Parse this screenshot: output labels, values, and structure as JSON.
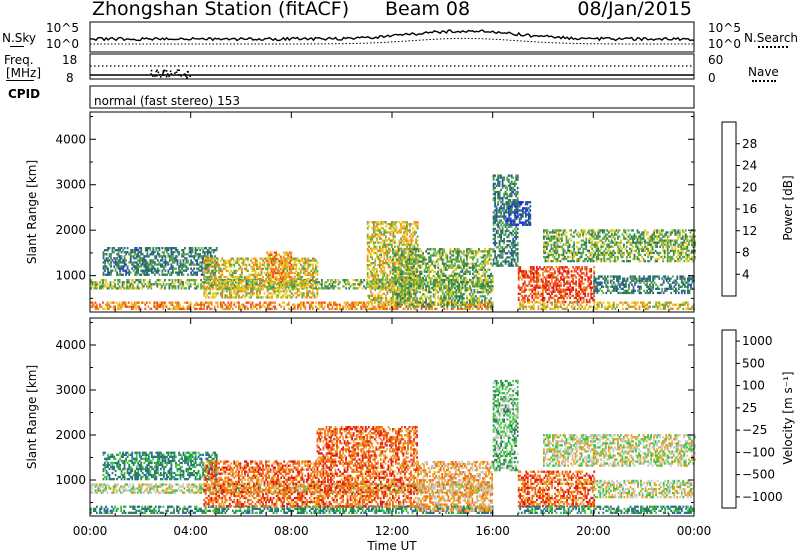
{
  "header": {
    "title": "Zhongshan Station (fitACF)",
    "beam": "Beam 08",
    "date": "08/Jan/2015"
  },
  "top_panels": {
    "nsky_label": "N.Sky",
    "nsearch_label": "N.Search",
    "nsky_ticks": [
      "10^5",
      "10^0"
    ],
    "freq_label": "Freq.",
    "freq_unit": "[MHz]",
    "freq_ticks": [
      "18",
      "8"
    ],
    "nave_label": "Nave",
    "nave_ticks": [
      "60",
      "0"
    ],
    "cpid_label": "CPID",
    "cpid_value": "normal (fast stereo) 153"
  },
  "chart_data": [
    {
      "type": "heatmap",
      "name": "power",
      "ylabel": "Slant Range [km]",
      "xlabel": "Time UT",
      "x_ticks": [
        "00:00",
        "04:00",
        "08:00",
        "12:00",
        "16:00",
        "20:00",
        "00:00"
      ],
      "y_ticks": [
        1000,
        2000,
        3000,
        4000
      ],
      "ylim": [
        200,
        4600
      ],
      "xlim": [
        0,
        24
      ],
      "colorbar": {
        "label": "Power [dB]",
        "ticks": [
          4,
          8,
          12,
          16,
          20,
          24,
          28
        ],
        "colors": [
          "#1e1eff",
          "#2a4fa8",
          "#2f7d57",
          "#5aa84a",
          "#e6c81e",
          "#f08a1e",
          "#f04a1a",
          "#e61414"
        ]
      },
      "echo_regions": [
        {
          "t0": 0.0,
          "t1": 16.0,
          "r0": 250,
          "r1": 420,
          "level": 5
        },
        {
          "t0": 0.0,
          "t1": 16.0,
          "r0": 700,
          "r1": 900,
          "level": 3
        },
        {
          "t0": 0.5,
          "t1": 5.0,
          "r0": 1000,
          "r1": 1600,
          "level": 2
        },
        {
          "t0": 4.5,
          "t1": 9.0,
          "r0": 500,
          "r1": 1400,
          "level": 4
        },
        {
          "t0": 7.0,
          "t1": 8.0,
          "r0": 900,
          "r1": 1500,
          "level": 5
        },
        {
          "t0": 11.0,
          "t1": 13.0,
          "r0": 400,
          "r1": 2200,
          "level": 4
        },
        {
          "t0": 12.0,
          "t1": 16.0,
          "r0": 300,
          "r1": 1600,
          "level": 3
        },
        {
          "t0": 16.0,
          "t1": 17.0,
          "r0": 1200,
          "r1": 3200,
          "level": 2
        },
        {
          "t0": 16.5,
          "t1": 17.5,
          "r0": 2100,
          "r1": 2600,
          "level": 1
        },
        {
          "t0": 17.0,
          "t1": 20.0,
          "r0": 400,
          "r1": 1200,
          "level": 6
        },
        {
          "t0": 18.0,
          "t1": 24.0,
          "r0": 1300,
          "r1": 2000,
          "level": 3
        },
        {
          "t0": 17.0,
          "t1": 24.0,
          "r0": 250,
          "r1": 400,
          "level": 4
        },
        {
          "t0": 20.0,
          "t1": 24.0,
          "r0": 600,
          "r1": 1000,
          "level": 2
        }
      ]
    },
    {
      "type": "heatmap",
      "name": "velocity",
      "ylabel": "Slant Range [km]",
      "xlabel": "Time UT",
      "x_ticks": [
        "00:00",
        "04:00",
        "08:00",
        "12:00",
        "16:00",
        "20:00",
        "00:00"
      ],
      "y_ticks": [
        1000,
        2000,
        3000,
        4000
      ],
      "ylim": [
        200,
        4600
      ],
      "xlim": [
        0,
        24
      ],
      "colorbar": {
        "label": "Velocity [m s⁻¹]",
        "ticks": [
          "1000",
          "500",
          "100",
          "25",
          "−25",
          "−100",
          "−500",
          "−1000"
        ],
        "colors": [
          "#1e3cc8",
          "#2a6ea0",
          "#2f7d57",
          "#3cc83c",
          "#c8c8c8",
          "#f0a01e",
          "#f06a14",
          "#e61414"
        ]
      },
      "echo_regions": [
        {
          "t0": 0.0,
          "t1": 16.0,
          "r0": 250,
          "r1": 400,
          "level": 2
        },
        {
          "t0": 0.0,
          "t1": 16.0,
          "r0": 700,
          "r1": 900,
          "level": 4
        },
        {
          "t0": 0.5,
          "t1": 5.0,
          "r0": 1000,
          "r1": 1600,
          "level": 2
        },
        {
          "t0": 4.5,
          "t1": 9.0,
          "r0": 400,
          "r1": 1400,
          "level": 6
        },
        {
          "t0": 9.0,
          "t1": 13.0,
          "r0": 400,
          "r1": 2200,
          "level": 6
        },
        {
          "t0": 13.0,
          "t1": 16.0,
          "r0": 300,
          "r1": 1400,
          "level": 5
        },
        {
          "t0": 16.0,
          "t1": 17.0,
          "r0": 1200,
          "r1": 3200,
          "level": 3
        },
        {
          "t0": 17.0,
          "t1": 20.0,
          "r0": 400,
          "r1": 1200,
          "level": 6
        },
        {
          "t0": 18.0,
          "t1": 24.0,
          "r0": 1300,
          "r1": 2000,
          "level": 4
        },
        {
          "t0": 17.0,
          "t1": 24.0,
          "r0": 250,
          "r1": 400,
          "level": 2
        },
        {
          "t0": 20.0,
          "t1": 24.0,
          "r0": 600,
          "r1": 1000,
          "level": 4
        }
      ]
    }
  ]
}
